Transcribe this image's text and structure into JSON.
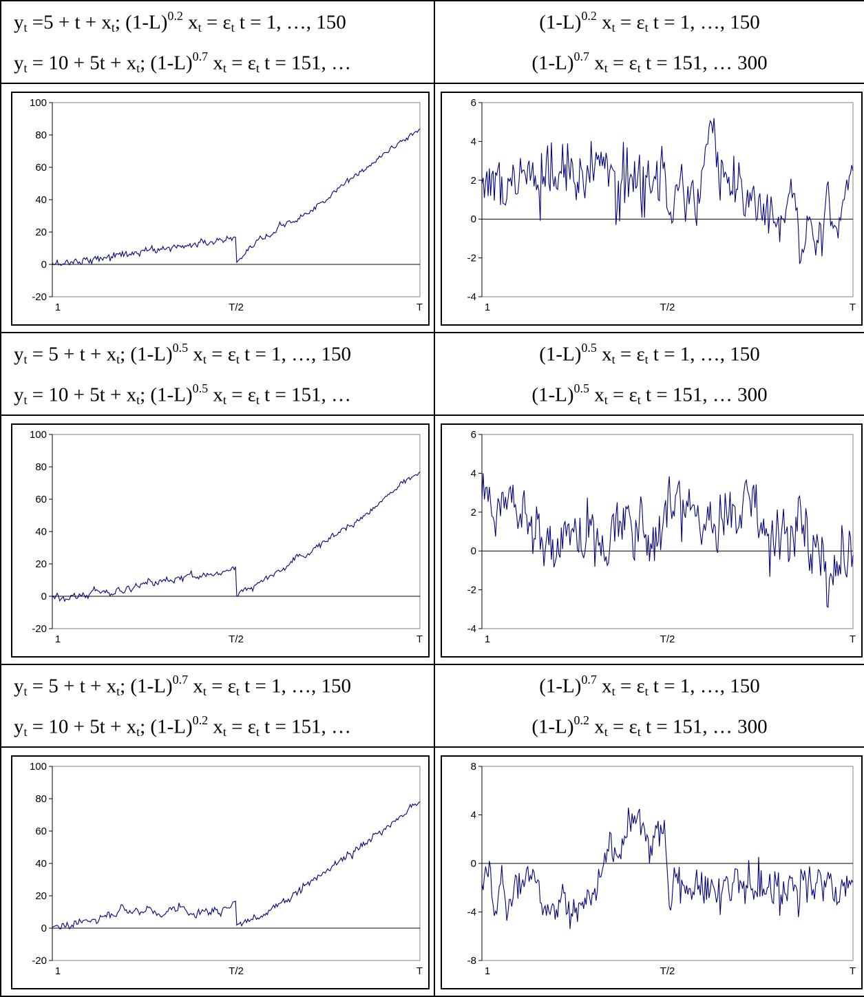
{
  "rows": [
    {
      "left_header": {
        "line1": {
          "y": "y",
          "s1": "t",
          "mid": " =5 + t + x",
          "s2": "t",
          "sep": ";  (1-L)",
          "exp": "0.2",
          "x": " x",
          "s3": "t",
          "tail": " = ε",
          "s4": "t",
          "range": "  t  =  1, …, 150"
        },
        "line2": {
          "y": "y",
          "s1": "t",
          "mid": " = 10 + 5t + x",
          "s2": "t",
          "sep": ";  (1-L)",
          "exp": "0.7",
          "x": " x",
          "s3": "t",
          "tail": " = ε",
          "s4": "t",
          "range": "  t = 151, …"
        }
      },
      "right_header": {
        "line1": {
          "pre": "(1-L)",
          "exp": "0.2",
          "x": " x",
          "s1": "t",
          "tail": " = ε",
          "s2": "t",
          "range": "  t  =  1, …, 150"
        },
        "line2": {
          "pre": "(1-L)",
          "exp": "0.7",
          "x": " x",
          "s1": "t",
          "tail": " = ε",
          "s2": "t",
          "range": "  t = 151, … 300"
        }
      }
    },
    {
      "left_header": {
        "line1": {
          "y": "y",
          "s1": "t",
          "mid": " = 5 + t + x",
          "s2": "t",
          "sep": ";  (1-L)",
          "exp": "0.5",
          "x": " x",
          "s3": "t",
          "tail": " = ε",
          "s4": "t",
          "range": "  t  =  1, …, 150"
        },
        "line2": {
          "y": "y",
          "s1": "t",
          "mid": " = 10 + 5t + x",
          "s2": "t",
          "sep": ";  (1-L)",
          "exp": "0.5",
          "x": " x",
          "s3": "t",
          "tail": " = ε",
          "s4": "t",
          "range": "  t = 151, …"
        }
      },
      "right_header": {
        "line1": {
          "pre": "(1-L)",
          "exp": "0.5",
          "x": " x",
          "s1": "t",
          "tail": " = ε",
          "s2": "t",
          "range": "  t  =  1, …, 150"
        },
        "line2": {
          "pre": "(1-L)",
          "exp": "0.5",
          "x": " x",
          "s1": "t",
          "tail": " = ε",
          "s2": "t",
          "range": "  t = 151, … 300"
        }
      }
    },
    {
      "left_header": {
        "line1": {
          "y": "y",
          "s1": "t",
          "mid": " = 5 + t + x",
          "s2": "t",
          "sep": ";  (1-L)",
          "exp": "0.7",
          "x": " x",
          "s3": "t",
          "tail": " = ε",
          "s4": "t",
          "range": "  t  =  1, …, 150"
        },
        "line2": {
          "y": "y",
          "s1": "t",
          "mid": " = 10 + 5t + x",
          "s2": "t",
          "sep": ";  (1-L)",
          "exp": "0.2",
          "x": " x",
          "s3": "t",
          "tail": " = ε",
          "s4": "t",
          "range": "  t = 151, …"
        }
      },
      "right_header": {
        "line1": {
          "pre": "(1-L)",
          "exp": "0.7",
          "x": " x",
          "s1": "t",
          "tail": " = ε",
          "s2": "t",
          "range": "  t  =  1, …, 150"
        },
        "line2": {
          "pre": "(1-L)",
          "exp": "0.2",
          "x": " x",
          "s1": "t",
          "tail": " = ε",
          "s2": "t",
          "range": "  t = 151, … 300"
        }
      }
    }
  ],
  "colors": {
    "series": "#000080",
    "axis": "#000000",
    "frame": "#808080"
  },
  "chart_data": [
    {
      "id": "c1",
      "type": "line",
      "x_ticks": [
        "1",
        "T/2",
        "T"
      ],
      "ylim": [
        -20,
        100
      ],
      "y_ticks": [
        100,
        80,
        60,
        40,
        20,
        0,
        -20
      ],
      "grid": false,
      "n": 300,
      "seg1": {
        "d": 0.2,
        "a": 5,
        "b": 1
      },
      "seg2": {
        "d": 0.7,
        "a": 10,
        "b": 5
      },
      "start": 0,
      "jump_low": 1,
      "mid_high": 16,
      "end": 80,
      "noise": 2.0
    },
    {
      "id": "c2",
      "type": "line",
      "x_ticks": [
        "1",
        "T/2",
        "T"
      ],
      "ylim": [
        -4,
        6
      ],
      "y_ticks": [
        6,
        4,
        2,
        0,
        -2,
        -4
      ],
      "grid": false,
      "n": 300,
      "d1": 0.2,
      "d2": 0.7,
      "ymin_obs": -2.3,
      "ymax_obs": 5.2
    },
    {
      "id": "c3",
      "type": "line",
      "x_ticks": [
        "1",
        "T/2",
        "T"
      ],
      "ylim": [
        -20,
        100
      ],
      "y_ticks": [
        100,
        80,
        60,
        40,
        20,
        0,
        -20
      ],
      "grid": false,
      "n": 300,
      "seg1": {
        "d": 0.5,
        "a": 5,
        "b": 1
      },
      "seg2": {
        "d": 0.5,
        "a": 10,
        "b": 5
      },
      "start": 0,
      "jump_low": 1,
      "mid_high": 16,
      "end": 78,
      "noise": 2.0
    },
    {
      "id": "c4",
      "type": "line",
      "x_ticks": [
        "1",
        "T/2",
        "T"
      ],
      "ylim": [
        -4,
        6
      ],
      "y_ticks": [
        6,
        4,
        2,
        0,
        -2,
        -4
      ],
      "grid": false,
      "n": 300,
      "d1": 0.5,
      "d2": 0.5,
      "ymin_obs": -2.9,
      "ymax_obs": 4.0
    },
    {
      "id": "c5",
      "type": "line",
      "x_ticks": [
        "1",
        "T/2",
        "T"
      ],
      "ylim": [
        -20,
        100
      ],
      "y_ticks": [
        100,
        80,
        60,
        40,
        20,
        0,
        -20
      ],
      "grid": false,
      "n": 300,
      "seg1": {
        "d": 0.7,
        "a": 5,
        "b": 1
      },
      "seg2": {
        "d": 0.2,
        "a": 10,
        "b": 5
      },
      "start": 0,
      "jump_low": 1,
      "mid_high": 17,
      "end": 78,
      "noise": 2.5
    },
    {
      "id": "c6",
      "type": "line",
      "x_ticks": [
        "1",
        "T/2",
        "T"
      ],
      "ylim": [
        -8,
        8
      ],
      "y_ticks": [
        8,
        4,
        0,
        -4,
        -8
      ],
      "grid": false,
      "n": 300,
      "d1": 0.7,
      "d2": 0.2,
      "ymin_obs": -5.4,
      "ymax_obs": 4.6
    }
  ]
}
